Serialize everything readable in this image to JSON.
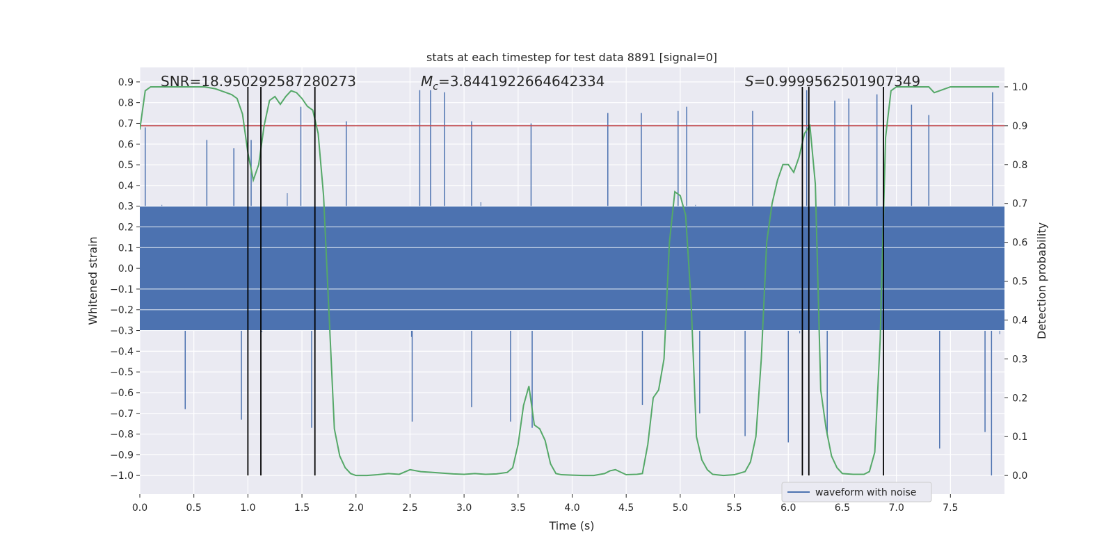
{
  "chart_data": {
    "type": "line",
    "title": "stats at each timestep for test data 8891 [signal=0]",
    "xlabel": "Time (s)",
    "ylabel": "Whitened strain",
    "y2label": "Detection probability",
    "xlim": [
      0.0,
      8.0
    ],
    "ylim": [
      -1.09,
      0.97
    ],
    "y2lim": [
      -0.048,
      1.05
    ],
    "x_ticks": [
      0.0,
      0.5,
      1.0,
      1.5,
      2.0,
      2.5,
      3.0,
      3.5,
      4.0,
      4.5,
      5.0,
      5.5,
      6.0,
      6.5,
      7.0,
      7.5
    ],
    "y_ticks": [
      -1.0,
      -0.9,
      -0.8,
      -0.7,
      -0.6,
      -0.5,
      -0.4,
      -0.3,
      -0.2,
      -0.1,
      0.0,
      0.1,
      0.2,
      0.3,
      0.4,
      0.5,
      0.6,
      0.7,
      0.8,
      0.9
    ],
    "y2_ticks": [
      0.0,
      0.1,
      0.2,
      0.3,
      0.4,
      0.5,
      0.6,
      0.7,
      0.8,
      0.9,
      1.0
    ],
    "grid": true,
    "legend_position": "lower-right",
    "annotations": {
      "snr": "SNR=18.950292587280273",
      "mc_symbol": "M",
      "mc_sub": "c",
      "mc_value": "=3.8441922664642334",
      "s_symbol": "S",
      "s_value": "=0.9999562501907349"
    },
    "threshold": {
      "axis": "right",
      "value": 0.9,
      "color": "#c44e52"
    },
    "vertical_markers": [
      1.0,
      1.12,
      1.62,
      6.13,
      6.19,
      6.88
    ],
    "series": [
      {
        "name": "waveform with noise",
        "axis": "left",
        "color": "#4c72b0",
        "kind": "dense noisy waveform (noise only, envelope approx ±0.45 with spikes to ±1.0)",
        "envelope_pos": 0.45,
        "envelope_neg": -0.45,
        "spikes_max": [
          [
            0.05,
            0.68
          ],
          [
            0.62,
            0.62
          ],
          [
            0.87,
            0.58
          ],
          [
            1.03,
            0.62
          ],
          [
            1.49,
            0.78
          ],
          [
            1.91,
            0.71
          ],
          [
            2.59,
            0.86
          ],
          [
            2.69,
            0.86
          ],
          [
            2.82,
            0.85
          ],
          [
            3.07,
            0.71
          ],
          [
            3.62,
            0.7
          ],
          [
            4.33,
            0.75
          ],
          [
            4.64,
            0.75
          ],
          [
            4.98,
            0.76
          ],
          [
            5.06,
            0.78
          ],
          [
            5.67,
            0.76
          ],
          [
            6.17,
            0.86
          ],
          [
            6.43,
            0.81
          ],
          [
            6.56,
            0.82
          ],
          [
            6.82,
            0.84
          ],
          [
            7.14,
            0.79
          ],
          [
            7.3,
            0.74
          ],
          [
            7.89,
            0.85
          ]
        ],
        "spikes_min": [
          [
            0.42,
            -0.68
          ],
          [
            0.94,
            -0.73
          ],
          [
            1.59,
            -0.77
          ],
          [
            2.52,
            -0.74
          ],
          [
            3.07,
            -0.67
          ],
          [
            3.43,
            -0.74
          ],
          [
            3.63,
            -0.77
          ],
          [
            4.65,
            -0.66
          ],
          [
            5.18,
            -0.7
          ],
          [
            5.6,
            -0.81
          ],
          [
            6.0,
            -0.84
          ],
          [
            6.36,
            -0.81
          ],
          [
            7.4,
            -0.87
          ],
          [
            7.82,
            -0.79
          ],
          [
            7.88,
            -1.0
          ]
        ]
      },
      {
        "name": "",
        "axis": "right",
        "color": "#55a868",
        "x": [
          0.0,
          0.05,
          0.1,
          0.2,
          0.3,
          0.4,
          0.5,
          0.6,
          0.7,
          0.8,
          0.85,
          0.9,
          0.95,
          1.0,
          1.05,
          1.1,
          1.15,
          1.2,
          1.25,
          1.3,
          1.35,
          1.4,
          1.45,
          1.5,
          1.55,
          1.6,
          1.65,
          1.7,
          1.75,
          1.8,
          1.85,
          1.9,
          1.95,
          2.0,
          2.1,
          2.2,
          2.3,
          2.4,
          2.5,
          2.6,
          2.7,
          2.8,
          2.9,
          3.0,
          3.1,
          3.2,
          3.3,
          3.4,
          3.45,
          3.5,
          3.55,
          3.6,
          3.65,
          3.7,
          3.75,
          3.8,
          3.85,
          3.9,
          4.0,
          4.1,
          4.2,
          4.3,
          4.35,
          4.4,
          4.5,
          4.6,
          4.65,
          4.7,
          4.75,
          4.8,
          4.85,
          4.9,
          4.95,
          5.0,
          5.05,
          5.1,
          5.15,
          5.2,
          5.25,
          5.3,
          5.4,
          5.5,
          5.6,
          5.65,
          5.7,
          5.75,
          5.8,
          5.85,
          5.9,
          5.95,
          6.0,
          6.05,
          6.1,
          6.15,
          6.2,
          6.25,
          6.3,
          6.35,
          6.4,
          6.45,
          6.5,
          6.6,
          6.7,
          6.75,
          6.8,
          6.85,
          6.9,
          6.95,
          7.0,
          7.1,
          7.2,
          7.3,
          7.35,
          7.4,
          7.5,
          7.6,
          7.7,
          7.8,
          7.9,
          7.95
        ],
        "y": [
          0.89,
          0.99,
          1.0,
          1.0,
          1.0,
          1.0,
          1.0,
          1.0,
          0.995,
          0.985,
          0.98,
          0.97,
          0.93,
          0.83,
          0.76,
          0.8,
          0.9,
          0.965,
          0.975,
          0.955,
          0.975,
          0.99,
          0.985,
          0.97,
          0.95,
          0.94,
          0.88,
          0.72,
          0.42,
          0.12,
          0.05,
          0.02,
          0.005,
          0.0,
          0.0,
          0.002,
          0.005,
          0.003,
          0.015,
          0.01,
          0.008,
          0.006,
          0.004,
          0.003,
          0.005,
          0.003,
          0.004,
          0.008,
          0.02,
          0.08,
          0.18,
          0.23,
          0.13,
          0.12,
          0.09,
          0.03,
          0.005,
          0.002,
          0.001,
          0.0,
          0.0,
          0.005,
          0.012,
          0.015,
          0.002,
          0.003,
          0.005,
          0.08,
          0.2,
          0.22,
          0.3,
          0.6,
          0.73,
          0.72,
          0.67,
          0.45,
          0.1,
          0.04,
          0.015,
          0.003,
          0.0,
          0.002,
          0.01,
          0.035,
          0.1,
          0.3,
          0.6,
          0.7,
          0.76,
          0.8,
          0.8,
          0.78,
          0.82,
          0.88,
          0.9,
          0.75,
          0.22,
          0.12,
          0.05,
          0.02,
          0.005,
          0.003,
          0.003,
          0.01,
          0.06,
          0.35,
          0.87,
          0.99,
          1.0,
          1.0,
          1.0,
          1.0,
          0.985,
          0.99,
          1.0,
          1.0,
          1.0,
          1.0,
          1.0,
          1.0
        ]
      }
    ]
  }
}
